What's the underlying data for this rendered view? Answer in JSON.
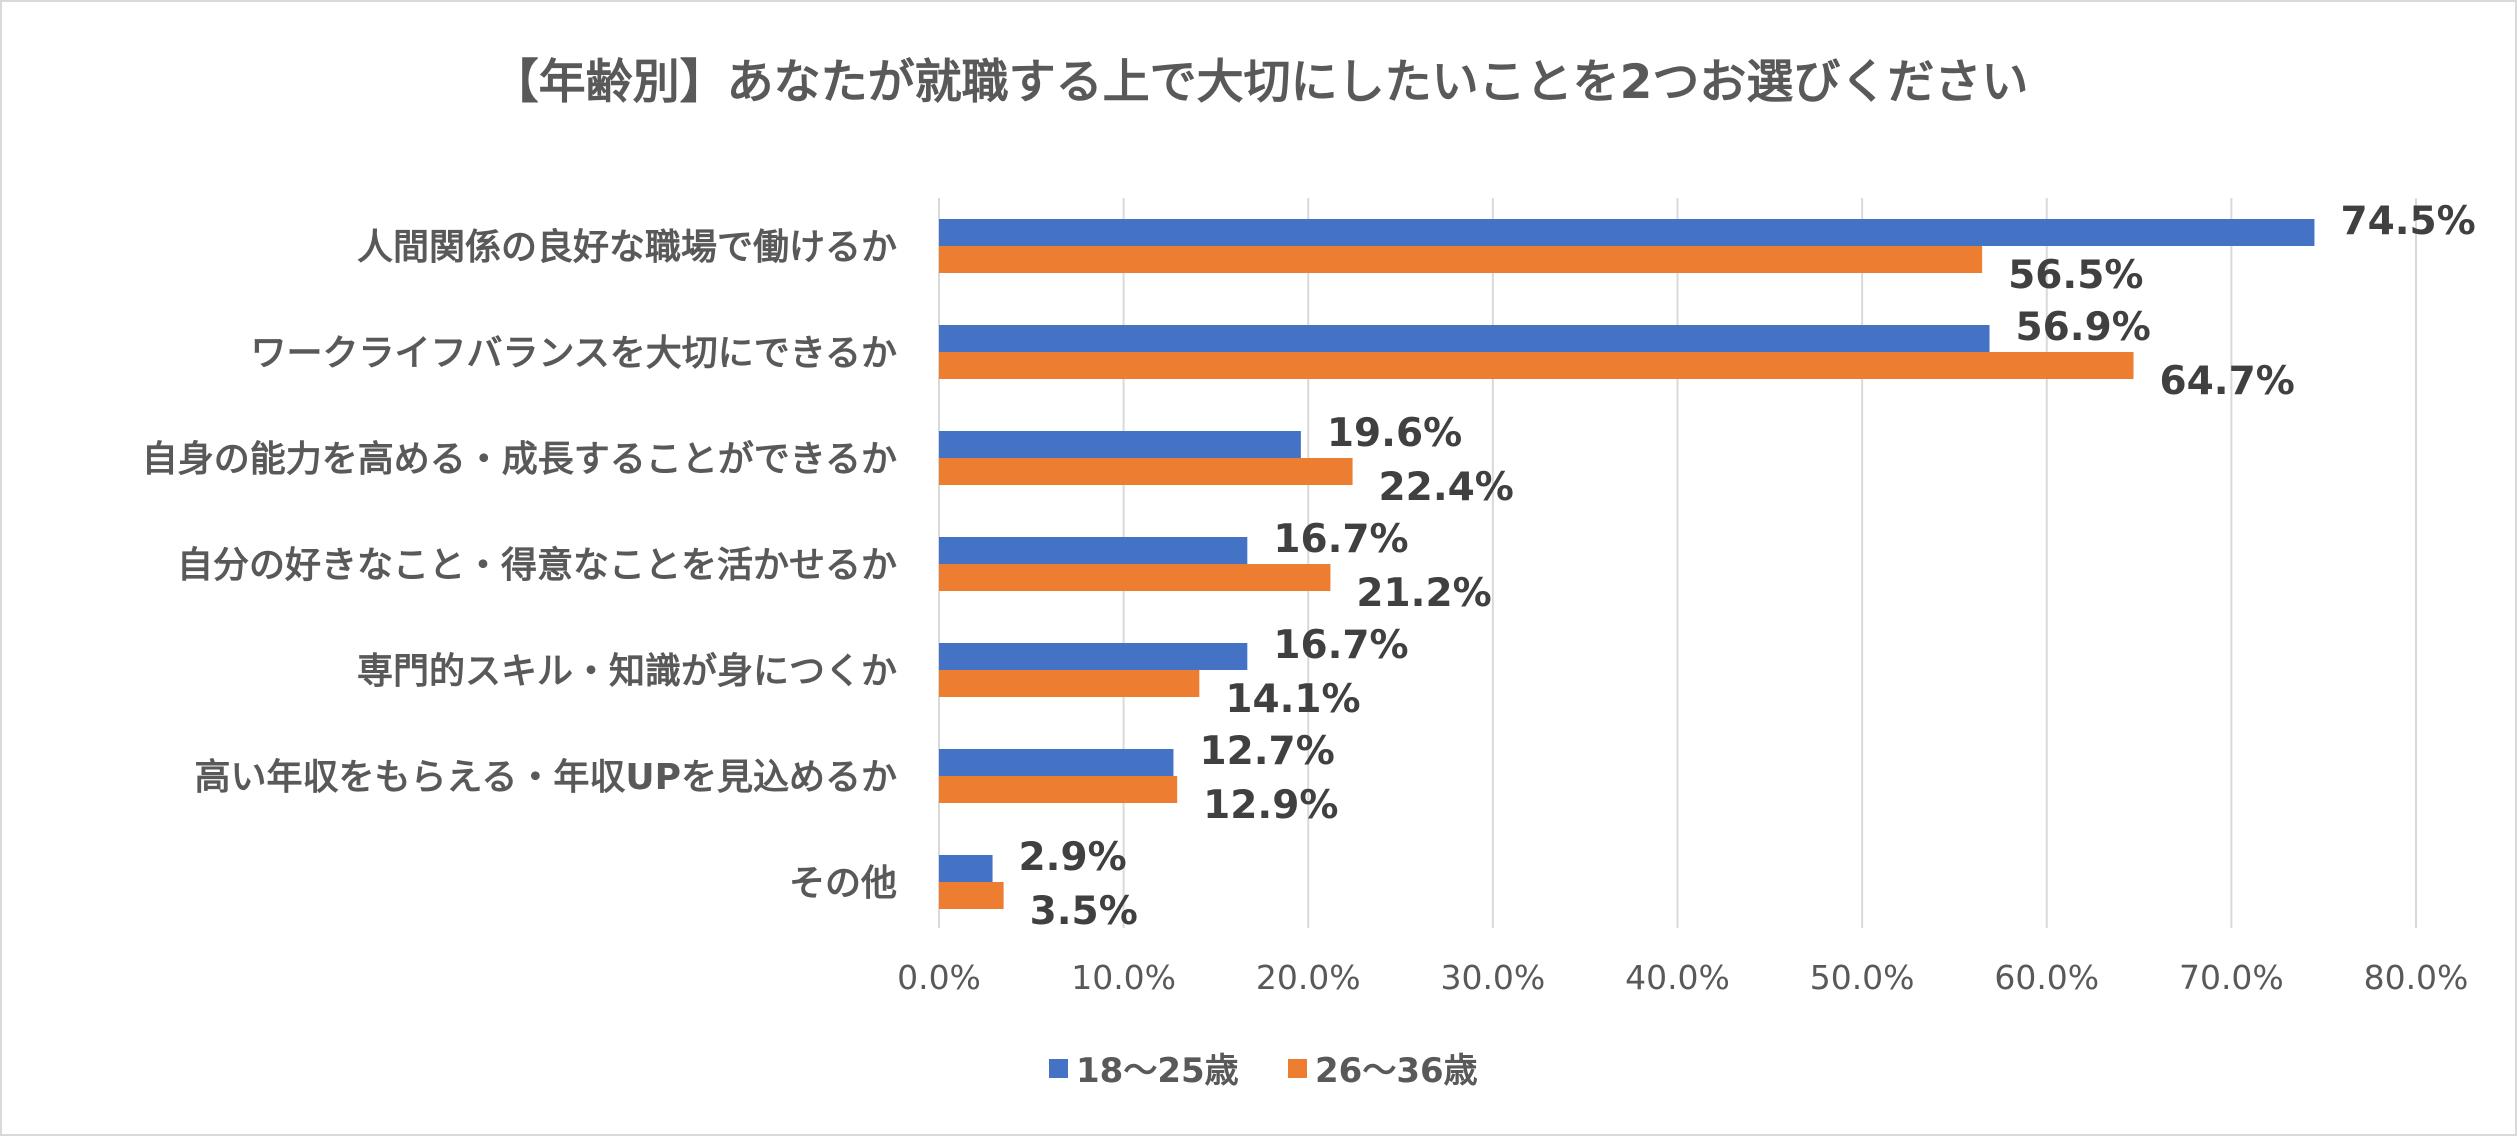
{
  "chart_data": {
    "type": "bar",
    "orientation": "horizontal",
    "title": "【年齢別】あなたが就職する上で大切にしたいことを2つお選びください",
    "categories": [
      "人間関係の良好な職場で働けるか",
      "ワークライフバランスを大切にできるか",
      "自身の能力を高める・成長することができるか",
      "自分の好きなこと・得意なことを活かせるか",
      "専門的スキル・知識が身につくか",
      "高い年収をもらえる・年収UPを見込めるか",
      "その他"
    ],
    "series": [
      {
        "name": "18～25歳",
        "color": "#4472c4",
        "values": [
          74.5,
          56.9,
          19.6,
          16.7,
          16.7,
          12.7,
          2.9
        ],
        "labels": [
          "74.5%",
          "56.9%",
          "19.6%",
          "16.7%",
          "16.7%",
          "12.7%",
          "2.9%"
        ]
      },
      {
        "name": "26～36歳",
        "color": "#ed7d31",
        "values": [
          56.5,
          64.7,
          22.4,
          21.2,
          14.1,
          12.9,
          3.5
        ],
        "labels": [
          "56.5%",
          "64.7%",
          "22.4%",
          "21.2%",
          "14.1%",
          "12.9%",
          "3.5%"
        ]
      }
    ],
    "xlim": [
      0,
      80
    ],
    "xticks": [
      "0.0%",
      "10.0%",
      "20.0%",
      "30.0%",
      "40.0%",
      "50.0%",
      "60.0%",
      "70.0%",
      "80.0%"
    ],
    "grid": true,
    "legend": "bottom-center",
    "gridline_color": "#d9d9d9",
    "text_color": "#595959"
  }
}
